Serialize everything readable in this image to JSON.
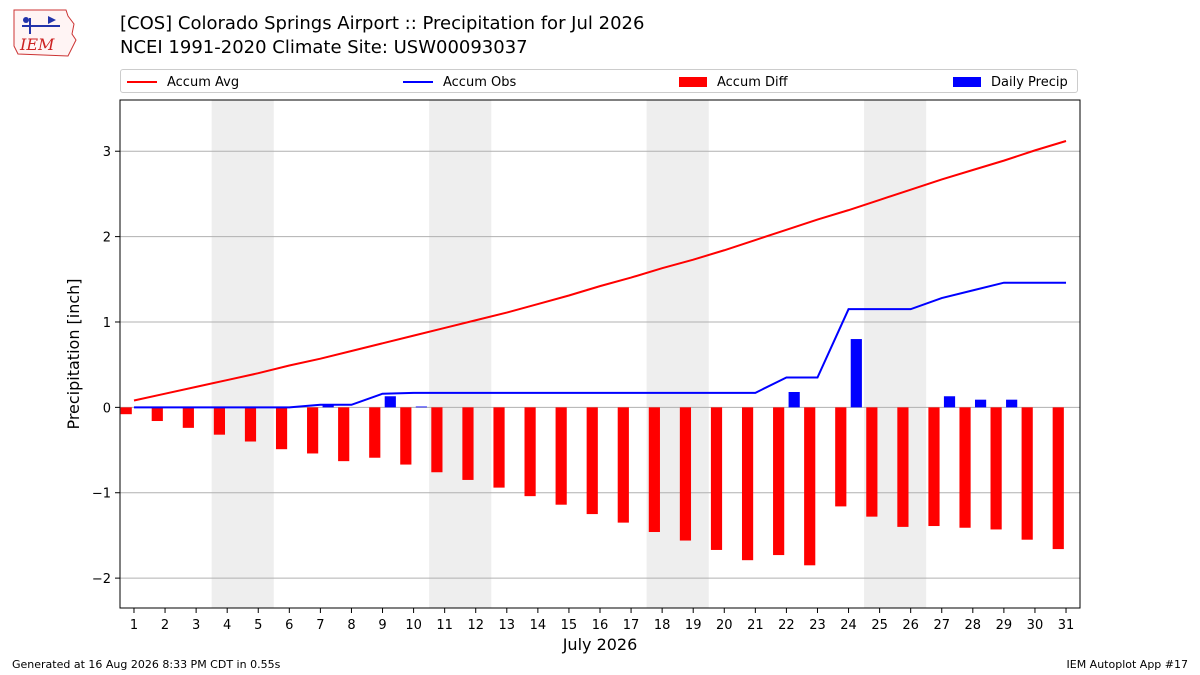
{
  "header": {
    "title": "[COS] Colorado Springs Airport :: Precipitation for Jul 2026",
    "subtitle": "NCEI 1991-2020 Climate Site: USW00093037",
    "logo_text": "IEM"
  },
  "footer": {
    "left": "Generated at 16 Aug 2026 8:33 PM CDT in 0.55s",
    "right": "IEM Autoplot App #17"
  },
  "colors": {
    "avg": "#ff0000",
    "obs": "#0000ff",
    "diff": "#ff0000",
    "daily": "#0000ff",
    "weekend": "#eeeeee",
    "grid": "#b0b0b0"
  },
  "chart_data": {
    "type": "bar",
    "title": "[COS] Colorado Springs Airport :: Precipitation for Jul 2026",
    "subtitle": "NCEI 1991-2020 Climate Site: USW00093037",
    "xlabel": "July 2026",
    "ylabel": "Precipitation [inch]",
    "x": [
      1,
      2,
      3,
      4,
      5,
      6,
      7,
      8,
      9,
      10,
      11,
      12,
      13,
      14,
      15,
      16,
      17,
      18,
      19,
      20,
      21,
      22,
      23,
      24,
      25,
      26,
      27,
      28,
      29,
      30,
      31
    ],
    "xticks": [
      "1",
      "2",
      "3",
      "4",
      "5",
      "6",
      "7",
      "8",
      "9",
      "10",
      "11",
      "12",
      "13",
      "14",
      "15",
      "16",
      "17",
      "18",
      "19",
      "20",
      "21",
      "22",
      "23",
      "24",
      "25",
      "26",
      "27",
      "28",
      "29",
      "30",
      "31"
    ],
    "ylim": [
      -2.35,
      3.6
    ],
    "yticks": [
      -2,
      -1,
      0,
      1,
      2,
      3
    ],
    "ytick_labels": [
      "−2",
      "−1",
      "0",
      "1",
      "2",
      "3"
    ],
    "grid": "horizontal",
    "legend_position": "top",
    "weekend_shading": [
      [
        4,
        5
      ],
      [
        11,
        12
      ],
      [
        18,
        19
      ],
      [
        25,
        26
      ]
    ],
    "series": [
      {
        "name": "Accum Avg",
        "kind": "line",
        "values": [
          0.08,
          0.16,
          0.24,
          0.32,
          0.4,
          0.49,
          0.57,
          0.66,
          0.75,
          0.84,
          0.93,
          1.02,
          1.11,
          1.21,
          1.31,
          1.42,
          1.52,
          1.63,
          1.73,
          1.84,
          1.96,
          2.08,
          2.2,
          2.31,
          2.43,
          2.55,
          2.67,
          2.78,
          2.89,
          3.01,
          3.12
        ]
      },
      {
        "name": "Accum Obs",
        "kind": "line",
        "values": [
          0,
          0,
          0,
          0,
          0,
          0,
          0.03,
          0.03,
          0.16,
          0.17,
          0.17,
          0.17,
          0.17,
          0.17,
          0.17,
          0.17,
          0.17,
          0.17,
          0.17,
          0.17,
          0.17,
          0.35,
          0.35,
          1.15,
          1.15,
          1.15,
          1.28,
          1.37,
          1.46,
          1.46,
          1.46
        ]
      },
      {
        "name": "Accum Diff",
        "kind": "bar",
        "offset": -0.25,
        "values": [
          -0.08,
          -0.16,
          -0.24,
          -0.32,
          -0.4,
          -0.49,
          -0.54,
          -0.63,
          -0.59,
          -0.67,
          -0.76,
          -0.85,
          -0.94,
          -1.04,
          -1.14,
          -1.25,
          -1.35,
          -1.46,
          -1.56,
          -1.67,
          -1.79,
          -1.73,
          -1.85,
          -1.16,
          -1.28,
          -1.4,
          -1.39,
          -1.41,
          -1.43,
          -1.55,
          -1.66
        ]
      },
      {
        "name": "Daily Precip",
        "kind": "bar",
        "offset": 0.25,
        "values": [
          0,
          0,
          0,
          0,
          0,
          0,
          0.03,
          0,
          0.13,
          0.01,
          0,
          0,
          0,
          0,
          0,
          0,
          0,
          0,
          0,
          0,
          0,
          0.18,
          0,
          0.8,
          0,
          0,
          0.13,
          0.09,
          0.09,
          0,
          0
        ]
      }
    ]
  }
}
